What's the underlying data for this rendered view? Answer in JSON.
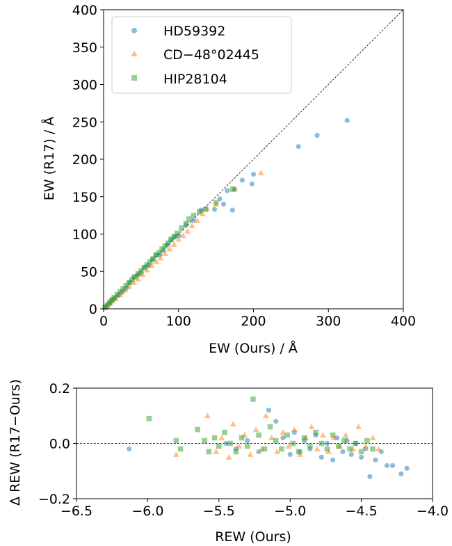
{
  "chart_data": [
    {
      "type": "scatter",
      "xlabel": "EW (Ours) / Å",
      "ylabel": "EW (R17) / Å",
      "xlim": [
        0,
        400
      ],
      "ylim": [
        0,
        400
      ],
      "xticks": [
        0,
        100,
        200,
        300,
        400
      ],
      "yticks": [
        0,
        50,
        100,
        150,
        200,
        250,
        300,
        350,
        400
      ],
      "reference_line": {
        "style": "dashed",
        "from": [
          0,
          0
        ],
        "to": [
          400,
          400
        ]
      },
      "legend": {
        "position": "top-left",
        "items": [
          "HD59392",
          "CD−48°02445",
          "HIP28104"
        ]
      },
      "series": [
        {
          "name": "HD59392",
          "marker": "circle",
          "color": "#1f77b4",
          "points": [
            [
              3,
              3
            ],
            [
              6,
              6
            ],
            [
              9,
              8
            ],
            [
              12,
              12
            ],
            [
              15,
              14
            ],
            [
              20,
              18
            ],
            [
              25,
              22
            ],
            [
              30,
              27
            ],
            [
              35,
              36
            ],
            [
              40,
              42
            ],
            [
              45,
              45
            ],
            [
              50,
              48
            ],
            [
              55,
              56
            ],
            [
              60,
              58
            ],
            [
              65,
              66
            ],
            [
              70,
              72
            ],
            [
              75,
              72
            ],
            [
              80,
              78
            ],
            [
              85,
              86
            ],
            [
              90,
              92
            ],
            [
              95,
              96
            ],
            [
              100,
              98
            ],
            [
              110,
              112
            ],
            [
              120,
              118
            ],
            [
              130,
              132
            ],
            [
              148,
              133
            ],
            [
              155,
              147
            ],
            [
              160,
              140
            ],
            [
              165,
              158
            ],
            [
              172,
              132
            ],
            [
              175,
              160
            ],
            [
              185,
              172
            ],
            [
              198,
              167
            ],
            [
              200,
              180
            ],
            [
              260,
              217
            ],
            [
              285,
              232
            ],
            [
              325,
              252
            ]
          ]
        },
        {
          "name": "CD−48°02445",
          "marker": "triangle",
          "color": "#ff7f0e",
          "points": [
            [
              4,
              3
            ],
            [
              8,
              7
            ],
            [
              12,
              11
            ],
            [
              16,
              14
            ],
            [
              22,
              19
            ],
            [
              28,
              25
            ],
            [
              34,
              30
            ],
            [
              40,
              35
            ],
            [
              46,
              40
            ],
            [
              52,
              46
            ],
            [
              58,
              52
            ],
            [
              64,
              58
            ],
            [
              70,
              63
            ],
            [
              76,
              68
            ],
            [
              82,
              74
            ],
            [
              88,
              80
            ],
            [
              94,
              86
            ],
            [
              100,
              93
            ],
            [
              106,
              98
            ],
            [
              112,
              104
            ],
            [
              118,
              111
            ],
            [
              125,
              118
            ],
            [
              132,
              127
            ],
            [
              138,
              134
            ],
            [
              150,
              140
            ],
            [
              175,
              160
            ],
            [
              210,
              182
            ]
          ]
        },
        {
          "name": "HIP28104",
          "marker": "square",
          "color": "#2ca02c",
          "points": [
            [
              2,
              2
            ],
            [
              5,
              5
            ],
            [
              8,
              9
            ],
            [
              11,
              12
            ],
            [
              14,
              15
            ],
            [
              18,
              19
            ],
            [
              22,
              23
            ],
            [
              26,
              27
            ],
            [
              30,
              31
            ],
            [
              34,
              35
            ],
            [
              38,
              39
            ],
            [
              42,
              43
            ],
            [
              46,
              47
            ],
            [
              50,
              51
            ],
            [
              54,
              55
            ],
            [
              58,
              59
            ],
            [
              62,
              63
            ],
            [
              66,
              67
            ],
            [
              70,
              72
            ],
            [
              74,
              75
            ],
            [
              78,
              80
            ],
            [
              82,
              84
            ],
            [
              86,
              88
            ],
            [
              90,
              93
            ],
            [
              94,
              97
            ],
            [
              98,
              101
            ],
            [
              104,
              108
            ],
            [
              110,
              114
            ],
            [
              114,
              120
            ],
            [
              120,
              125
            ],
            [
              128,
              130
            ],
            [
              136,
              133
            ],
            [
              150,
              142
            ],
            [
              172,
              160
            ]
          ]
        }
      ]
    },
    {
      "type": "scatter",
      "xlabel": "REW (Ours)",
      "ylabel": "Δ REW (R17−Ours)",
      "xlim": [
        -6.5,
        -4.0
      ],
      "ylim": [
        -0.2,
        0.2
      ],
      "xticks": [
        -6.5,
        -6.0,
        -5.5,
        -5.0,
        -4.5,
        -4.0
      ],
      "yticks": [
        -0.2,
        0.0,
        0.2
      ],
      "xtick_labels": [
        "−6.5",
        "−6.0",
        "−5.5",
        "−5.0",
        "−4.5",
        "−4.0"
      ],
      "ytick_labels": [
        "−0.2",
        "0.0",
        "0.2"
      ],
      "reference_line": {
        "style": "dashed",
        "y": 0
      },
      "series": [
        {
          "name": "HD59392",
          "marker": "circle",
          "color": "#1f77b4",
          "points": [
            [
              -6.13,
              -0.02
            ],
            [
              -5.45,
              0.0
            ],
            [
              -5.38,
              -0.02
            ],
            [
              -5.3,
              0.01
            ],
            [
              -5.22,
              -0.03
            ],
            [
              -5.15,
              0.12
            ],
            [
              -5.1,
              0.08
            ],
            [
              -5.05,
              0.02
            ],
            [
              -5.0,
              -0.04
            ],
            [
              -4.97,
              0.04
            ],
            [
              -4.93,
              -0.03
            ],
            [
              -4.9,
              0.01
            ],
            [
              -4.86,
              -0.02
            ],
            [
              -4.82,
              0.03
            ],
            [
              -4.78,
              -0.05
            ],
            [
              -4.74,
              0.0
            ],
            [
              -4.7,
              -0.06
            ],
            [
              -4.67,
              0.02
            ],
            [
              -4.63,
              -0.03
            ],
            [
              -4.6,
              0.01
            ],
            [
              -4.57,
              -0.04
            ],
            [
              -4.54,
              0.0
            ],
            [
              -4.5,
              -0.05
            ],
            [
              -4.47,
              -0.02
            ],
            [
              -4.44,
              -0.12
            ],
            [
              -4.4,
              -0.06
            ],
            [
              -4.36,
              -0.03
            ],
            [
              -4.32,
              -0.08
            ],
            [
              -4.28,
              -0.08
            ],
            [
              -4.22,
              -0.11
            ],
            [
              -4.18,
              -0.09
            ]
          ]
        },
        {
          "name": "CD−48°02445",
          "marker": "triangle",
          "color": "#ff7f0e",
          "points": [
            [
              -5.8,
              -0.04
            ],
            [
              -5.58,
              0.1
            ],
            [
              -5.52,
              -0.03
            ],
            [
              -5.48,
              0.02
            ],
            [
              -5.43,
              -0.05
            ],
            [
              -5.4,
              0.07
            ],
            [
              -5.36,
              -0.01
            ],
            [
              -5.32,
              0.03
            ],
            [
              -5.28,
              -0.04
            ],
            [
              -5.24,
              0.05
            ],
            [
              -5.2,
              -0.02
            ],
            [
              -5.17,
              0.1
            ],
            [
              -5.13,
              0.02
            ],
            [
              -5.09,
              -0.03
            ],
            [
              -5.05,
              0.04
            ],
            [
              -5.01,
              -0.01
            ],
            [
              -4.97,
              0.05
            ],
            [
              -4.93,
              -0.04
            ],
            [
              -4.89,
              0.02
            ],
            [
              -4.85,
              0.06
            ],
            [
              -4.81,
              -0.02
            ],
            [
              -4.77,
              0.03
            ],
            [
              -4.73,
              -0.03
            ],
            [
              -4.69,
              0.02
            ],
            [
              -4.65,
              -0.01
            ],
            [
              -4.61,
              0.03
            ],
            [
              -4.56,
              -0.02
            ],
            [
              -4.52,
              0.06
            ],
            [
              -4.47,
              -0.01
            ],
            [
              -4.42,
              0.02
            ],
            [
              -4.38,
              -0.02
            ]
          ]
        },
        {
          "name": "HIP28104",
          "marker": "square",
          "color": "#2ca02c",
          "points": [
            [
              -5.99,
              0.09
            ],
            [
              -5.8,
              0.01
            ],
            [
              -5.77,
              -0.02
            ],
            [
              -5.65,
              0.05
            ],
            [
              -5.6,
              0.01
            ],
            [
              -5.57,
              -0.03
            ],
            [
              -5.53,
              0.02
            ],
            [
              -5.5,
              -0.01
            ],
            [
              -5.46,
              0.04
            ],
            [
              -5.42,
              0.0
            ],
            [
              -5.38,
              -0.03
            ],
            [
              -5.34,
              0.02
            ],
            [
              -5.3,
              -0.01
            ],
            [
              -5.26,
              0.16
            ],
            [
              -5.22,
              0.03
            ],
            [
              -5.18,
              -0.02
            ],
            [
              -5.14,
              0.06
            ],
            [
              -5.1,
              0.01
            ],
            [
              -5.06,
              -0.02
            ],
            [
              -5.02,
              0.03
            ],
            [
              -4.98,
              0.0
            ],
            [
              -4.94,
              -0.03
            ],
            [
              -4.9,
              0.02
            ],
            [
              -4.86,
              -0.01
            ],
            [
              -4.82,
              0.04
            ],
            [
              -4.78,
              0.0
            ],
            [
              -4.74,
              -0.02
            ],
            [
              -4.7,
              0.03
            ],
            [
              -4.66,
              -0.01
            ],
            [
              -4.62,
              0.01
            ],
            [
              -4.58,
              -0.02
            ],
            [
              -4.54,
              0.0
            ],
            [
              -4.5,
              -0.03
            ],
            [
              -4.46,
              0.01
            ],
            [
              -4.42,
              -0.02
            ]
          ]
        }
      ]
    }
  ]
}
